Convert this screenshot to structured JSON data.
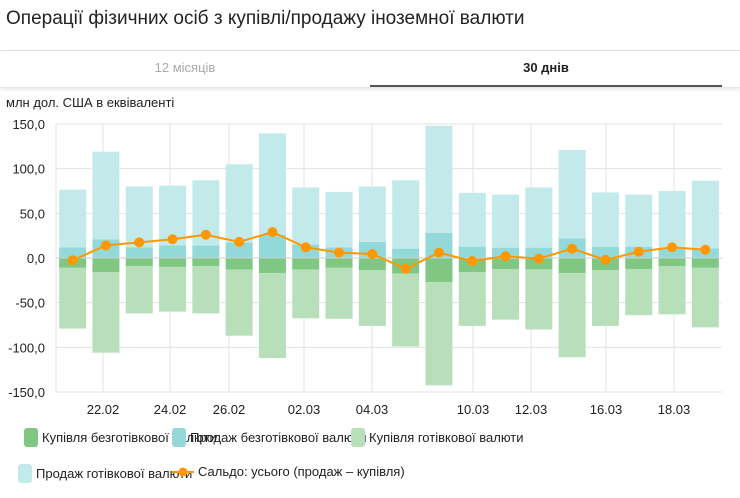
{
  "header": {
    "title": "Операції фізичних осіб з купівлі/продажу іноземної валюти"
  },
  "tabs": [
    {
      "label": "12 місяців",
      "active": false
    },
    {
      "label": "30 днів",
      "active": true
    }
  ],
  "chart_data": {
    "type": "bar",
    "stacked": true,
    "ylabel": "млн дол. США в еквіваленті",
    "ylim": [
      -150,
      150
    ],
    "y_ticks": [
      "150,0",
      "100,0",
      "50,0",
      "0,0",
      "-50,0",
      "-100,0",
      "-150,0"
    ],
    "x_tick_labels": [
      "22.02",
      "24.02",
      "26.02",
      "02.03",
      "04.03",
      "10.03",
      "12.03",
      "16.03",
      "18.03"
    ],
    "grid": true,
    "legend_position": "bottom",
    "series": [
      {
        "name": "Купівля безготівкової валюти",
        "color": "#81c784",
        "values": [
          -11,
          -16,
          -9,
          -10,
          -9,
          -13,
          -17,
          -13,
          -11,
          -13.5,
          -17.5,
          -27,
          -16,
          -12.3,
          -12.7,
          -17,
          -13.4,
          -12.3,
          -9.3,
          -11
        ]
      },
      {
        "name": "Продаж безготівкової валюти",
        "color": "#94d9d9",
        "values": [
          12,
          21,
          12,
          14,
          14,
          17.5,
          26,
          15,
          12,
          18,
          10.5,
          28,
          12.7,
          11.6,
          11.6,
          22,
          12.7,
          12.7,
          10.8,
          10.8
        ]
      },
      {
        "name": "Купівля готівкової валюти",
        "color": "#b7dfb9",
        "values": [
          -68,
          -90,
          -53,
          -50,
          -53,
          -74,
          -95,
          -54.5,
          -57,
          -62.5,
          -81.5,
          -115.5,
          -60,
          -56.7,
          -67.3,
          -94,
          -62.6,
          -51.7,
          -53.7,
          -66.6
        ]
      },
      {
        "name": "Продаж готівкової валюти",
        "color": "#c3eaea",
        "values": [
          64.5,
          98,
          68,
          67,
          73,
          87.5,
          113.5,
          64,
          62,
          62,
          76.5,
          120,
          60.3,
          59.4,
          67.4,
          99,
          60.8,
          58.3,
          64.2,
          75.7
        ]
      },
      {
        "name": "Сальдо: усього (продаж – купівля)",
        "type": "line",
        "color": "#ff9800",
        "values": [
          -2.5,
          14,
          17.5,
          21,
          26,
          18,
          29,
          12,
          6,
          4.5,
          -12,
          6,
          -3.4,
          2,
          -0.7,
          10.4,
          -2,
          7,
          12,
          9.3
        ]
      }
    ]
  }
}
